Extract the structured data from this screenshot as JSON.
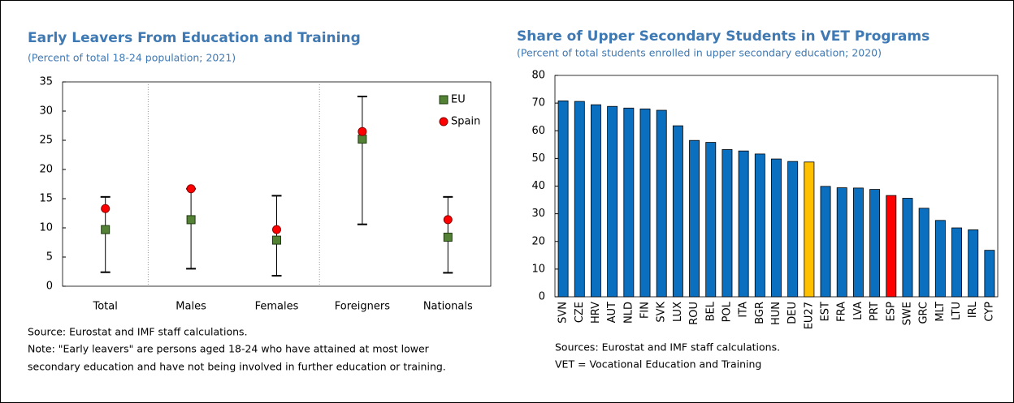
{
  "chart_data": [
    {
      "type": "range",
      "title": "Early Leavers From Education and Training",
      "subtitle": "(Percent of total 18-24 population; 2021)",
      "categories": [
        "Total",
        "Males",
        "Females",
        "Foreigners",
        "Nationals"
      ],
      "series": [
        {
          "name": "EU",
          "color": "#548235",
          "marker": "square",
          "values": [
            9.7,
            11.4,
            7.9,
            25.2,
            8.4
          ]
        },
        {
          "name": "Spain",
          "color": "#ff0000",
          "marker": "circle",
          "values": [
            13.3,
            16.7,
            9.7,
            26.5,
            11.4
          ]
        }
      ],
      "ranges": {
        "low": [
          2.4,
          3.0,
          1.8,
          10.6,
          2.3
        ],
        "high": [
          15.3,
          16.7,
          15.5,
          32.5,
          15.3
        ]
      },
      "ylim": [
        0,
        35
      ],
      "yticks": [
        0,
        5,
        10,
        15,
        20,
        25,
        30,
        35
      ],
      "legend": "upper right",
      "notes": [
        "Source: Eurostat and IMF staff calculations.",
        "Note: \"Early leavers\" are persons aged 18-24 who have attained at most lower",
        "secondary education and have not being involved in further education or training."
      ]
    },
    {
      "type": "bar",
      "title": "Share of Upper Secondary Students in VET Programs",
      "subtitle": "(Percent of total students enrolled in upper secondary education; 2020)",
      "categories": [
        "SVN",
        "CZE",
        "HRV",
        "AUT",
        "NLD",
        "FIN",
        "SVK",
        "LUX",
        "ROU",
        "BEL",
        "POL",
        "ITA",
        "BGR",
        "HUN",
        "DEU",
        "EU27",
        "EST",
        "FRA",
        "LVA",
        "PRT",
        "ESP",
        "SWE",
        "GRC",
        "MLT",
        "LTU",
        "IRL",
        "CYP"
      ],
      "values": [
        70.8,
        70.6,
        69.4,
        68.8,
        68.2,
        67.9,
        67.4,
        61.8,
        56.5,
        55.8,
        53.2,
        52.7,
        51.6,
        49.8,
        48.9,
        48.7,
        39.9,
        39.4,
        39.3,
        38.8,
        36.6,
        35.6,
        32.0,
        27.6,
        24.9,
        24.2,
        16.8
      ],
      "colors": [
        "#0b6fc0",
        "#0b6fc0",
        "#0b6fc0",
        "#0b6fc0",
        "#0b6fc0",
        "#0b6fc0",
        "#0b6fc0",
        "#0b6fc0",
        "#0b6fc0",
        "#0b6fc0",
        "#0b6fc0",
        "#0b6fc0",
        "#0b6fc0",
        "#0b6fc0",
        "#0b6fc0",
        "#ffc000",
        "#0b6fc0",
        "#0b6fc0",
        "#0b6fc0",
        "#0b6fc0",
        "#ff0000",
        "#0b6fc0",
        "#0b6fc0",
        "#0b6fc0",
        "#0b6fc0",
        "#0b6fc0",
        "#0b6fc0"
      ],
      "ylim": [
        0,
        80
      ],
      "yticks": [
        0,
        10,
        20,
        30,
        40,
        50,
        60,
        70,
        80
      ],
      "notes": [
        "Sources: Eurostat and IMF staff calculations.",
        "VET = Vocational Education and Training"
      ]
    }
  ]
}
